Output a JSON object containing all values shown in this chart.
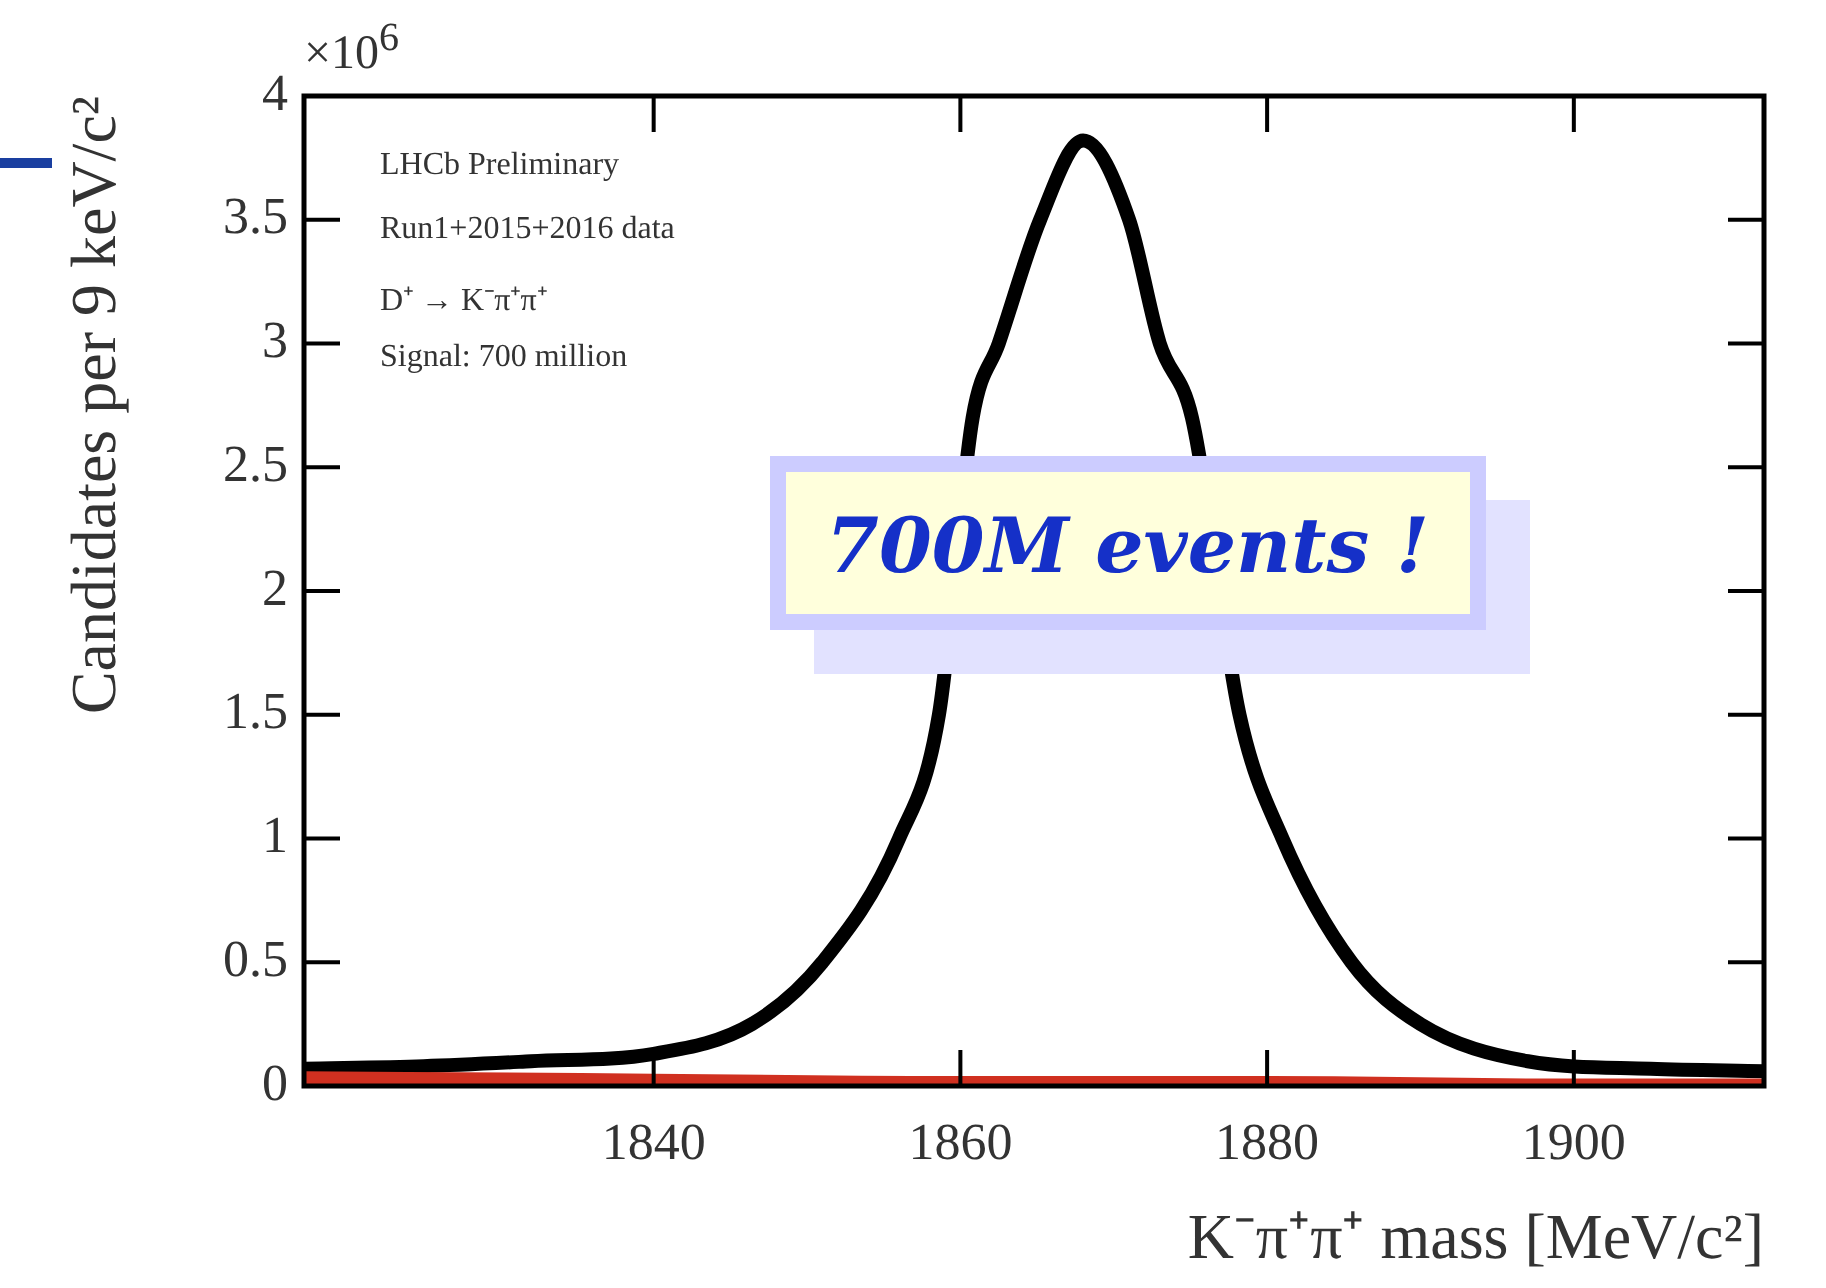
{
  "chart_data": {
    "type": "line",
    "xlabel": "K⁻π⁺π⁺ mass [MeV/c²]",
    "ylabel": "Candidates per 9 keV/c²",
    "annotations": [
      "×10$^{6}$",
      "LHCb Preliminary",
      "Run1+2015+2016 data",
      "D⁺ → K⁻π⁺π⁺",
      "Signal: 700 million",
      "700M events !"
    ],
    "series": [
      {
        "type": "area",
        "color": "#d03020",
        "x": [
          1817.2,
          1840,
          1860,
          1880,
          1900,
          1912.4
        ],
        "values": [
          0.06,
          0.05,
          0.04,
          0.04,
          0.03,
          0.03
        ]
      },
      {
        "type": "line",
        "color": "#000000",
        "x": [
          1817.2,
          1825,
          1832,
          1840,
          1846.4,
          1851,
          1856,
          1858.6,
          1860.8,
          1862.5,
          1865.2,
          1868,
          1871,
          1873,
          1875.1,
          1878.2,
          1881,
          1885.5,
          1890,
          1897,
          1905,
          1912.4
        ],
        "values": [
          0.07,
          0.08,
          0.1,
          0.13,
          0.25,
          0.5,
          1.0,
          1.5,
          2.7,
          3.0,
          3.5,
          3.82,
          3.5,
          3.0,
          2.7,
          1.5,
          1.0,
          0.5,
          0.25,
          0.1,
          0.07,
          0.06
        ]
      }
    ],
    "xlim": [
      1817.2,
      1912.4
    ],
    "xticks": [
      1840,
      1860,
      1880,
      1900
    ],
    "ylim": [
      0,
      4
    ],
    "yticks": [
      0,
      0.5,
      1,
      1.5,
      2,
      2.5,
      3,
      3.5,
      4
    ],
    "grid": false,
    "legend": false,
    "marker": "none",
    "line_style": "solid"
  }
}
